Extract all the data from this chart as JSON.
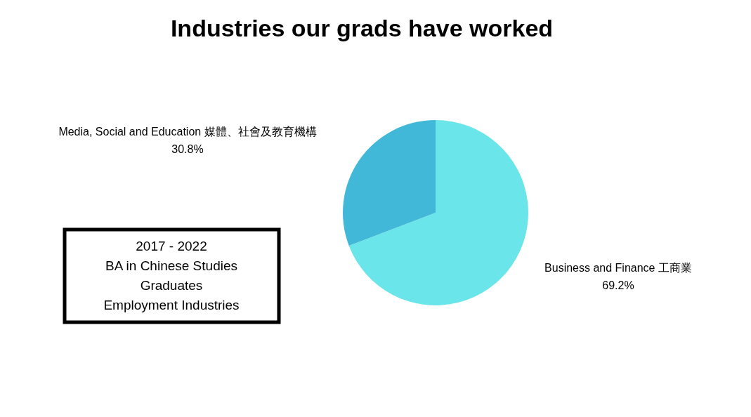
{
  "chart_data": {
    "type": "pie",
    "title": "Industries our grads have worked",
    "categories": [
      "Business and Finance 工商業",
      "Media, Social and Education 媒體、社會及教育機構"
    ],
    "values": [
      69.2,
      30.8
    ],
    "colors": [
      "#6ae5ea",
      "#42b8d8"
    ],
    "value_labels": [
      "69.2%",
      "30.8%"
    ],
    "annotations": [
      "2017 - 2022\nBA in Chinese Studies\nGraduates\nEmployment Industries"
    ]
  }
}
